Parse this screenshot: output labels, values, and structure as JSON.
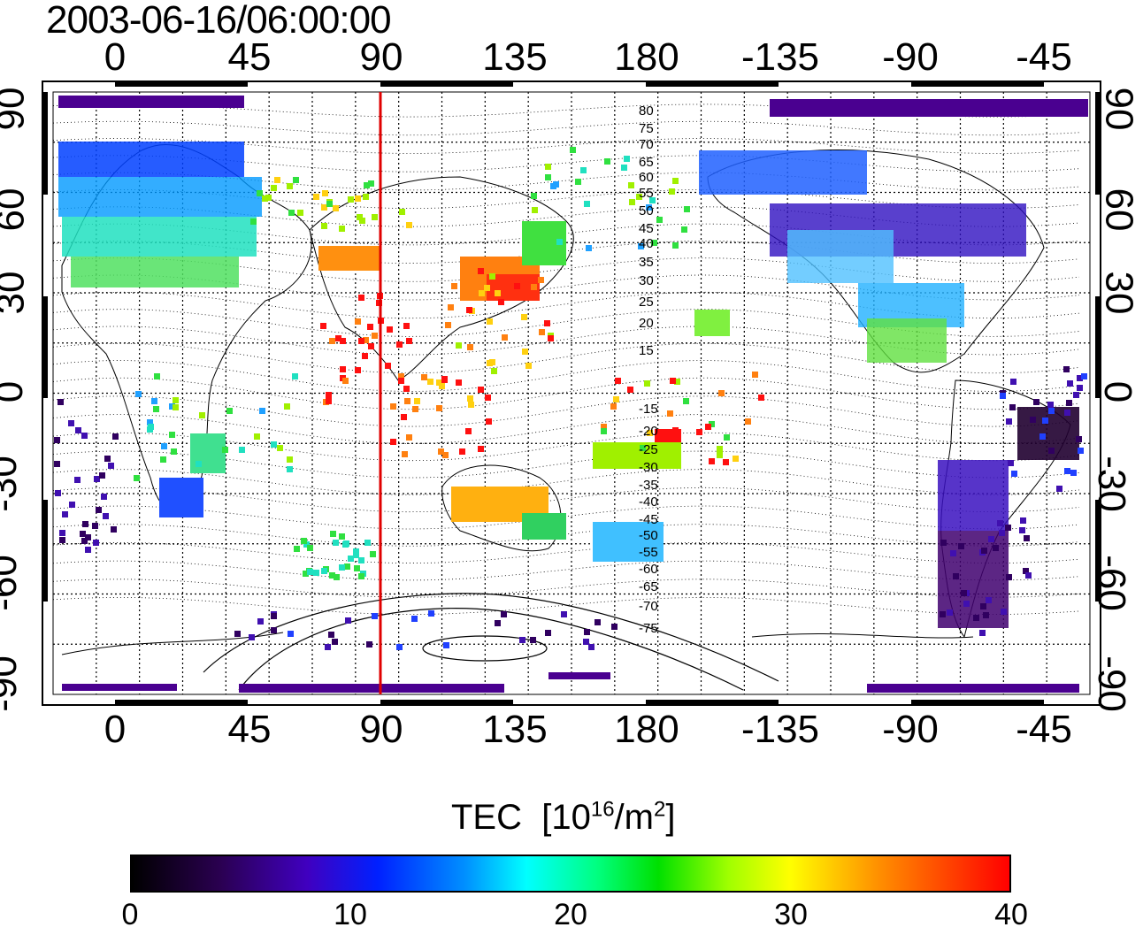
{
  "title": "2003-06-16/06:00:00",
  "lon_ticks_top": [
    "0",
    "45",
    "90",
    "135",
    "180",
    "-135",
    "-90",
    "-45"
  ],
  "lon_ticks_bottom": [
    "0",
    "45",
    "90",
    "135",
    "180",
    "-135",
    "-90",
    "-45"
  ],
  "lat_ticks_left": [
    "90",
    "60",
    "30",
    "0",
    "-30",
    "-60",
    "-90"
  ],
  "lat_ticks_right": [
    "90",
    "60",
    "30",
    "0",
    "-30",
    "-60",
    "-90"
  ],
  "magnetic_lat_labels": [
    "80",
    "75",
    "70",
    "65",
    "60",
    "55",
    "50",
    "45",
    "40",
    "35",
    "30",
    "25",
    "20",
    "15",
    "-15",
    "-20",
    "-25",
    "-30",
    "-35",
    "-40",
    "-45",
    "-50",
    "-55",
    "-60",
    "-65",
    "-70",
    "-75"
  ],
  "colorbar": {
    "title": "TEC",
    "unit_base": "[10",
    "unit_exp": "16",
    "unit_mid": "/m",
    "unit_exp2": "2",
    "unit_end": "]",
    "ticks": [
      "0",
      "10",
      "20",
      "30",
      "40"
    ],
    "range": [
      0,
      40
    ]
  },
  "colors": {
    "meridian_marker": "#e00000",
    "frame": "#000000"
  },
  "meridian_marker_lon": 90
}
